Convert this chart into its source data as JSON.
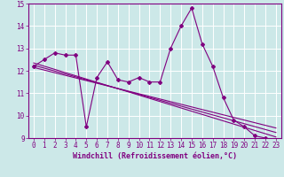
{
  "xlabel": "Windchill (Refroidissement éolien,°C)",
  "bg_color": "#cce8e8",
  "grid_color": "#ffffff",
  "line_color": "#800080",
  "xlim": [
    -0.5,
    23.5
  ],
  "ylim": [
    9,
    15
  ],
  "xticks": [
    0,
    1,
    2,
    3,
    4,
    5,
    6,
    7,
    8,
    9,
    10,
    11,
    12,
    13,
    14,
    15,
    16,
    17,
    18,
    19,
    20,
    21,
    22,
    23
  ],
  "yticks": [
    9,
    10,
    11,
    12,
    13,
    14,
    15
  ],
  "data_x": [
    0,
    1,
    2,
    3,
    4,
    5,
    6,
    7,
    8,
    9,
    10,
    11,
    12,
    13,
    14,
    15,
    16,
    17,
    18,
    19,
    20,
    21,
    22,
    23
  ],
  "data_y": [
    12.2,
    12.5,
    12.8,
    12.7,
    12.7,
    9.5,
    11.7,
    12.4,
    11.6,
    11.5,
    11.7,
    11.5,
    11.5,
    13.0,
    14.0,
    14.8,
    13.2,
    12.2,
    10.8,
    9.8,
    9.5,
    9.1,
    9.0,
    8.8
  ],
  "reg_lines": [
    [
      12.25,
      9.25
    ],
    [
      12.15,
      9.45
    ],
    [
      12.35,
      9.05
    ]
  ],
  "xlabel_fontsize": 6.0,
  "tick_fontsize": 5.5
}
